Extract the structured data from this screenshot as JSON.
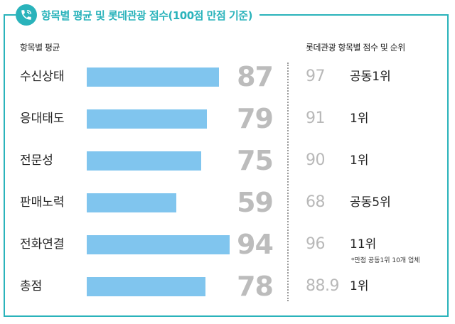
{
  "title": "항목별 평균 및 롯데관광 점수(100점 만점 기준)",
  "left_header": "항목별 평균",
  "right_header": "롯데관광 항목별 점수 및 순위",
  "note": "*만점 공동1위 10개 업체",
  "colors": {
    "accent": "#2ab3bb",
    "bar": "#80c5ee",
    "value": "#bcbcbc"
  },
  "icon": "phone-icon",
  "chart_data": {
    "type": "bar",
    "orientation": "horizontal",
    "title": "항목별 평균 및 롯데관광 점수(100점 만점 기준)",
    "xlim": [
      0,
      100
    ],
    "categories": [
      "수신상태",
      "응대태도",
      "전문성",
      "판매노력",
      "전화연결",
      "총점"
    ],
    "values": [
      87,
      79,
      75,
      59,
      94,
      78
    ],
    "lotte_scores": [
      "97",
      "91",
      "90",
      "68",
      "96",
      "88.9"
    ],
    "lotte_ranks": [
      "공동1위",
      "1위",
      "1위",
      "공동5위",
      "11위",
      "1위"
    ]
  }
}
